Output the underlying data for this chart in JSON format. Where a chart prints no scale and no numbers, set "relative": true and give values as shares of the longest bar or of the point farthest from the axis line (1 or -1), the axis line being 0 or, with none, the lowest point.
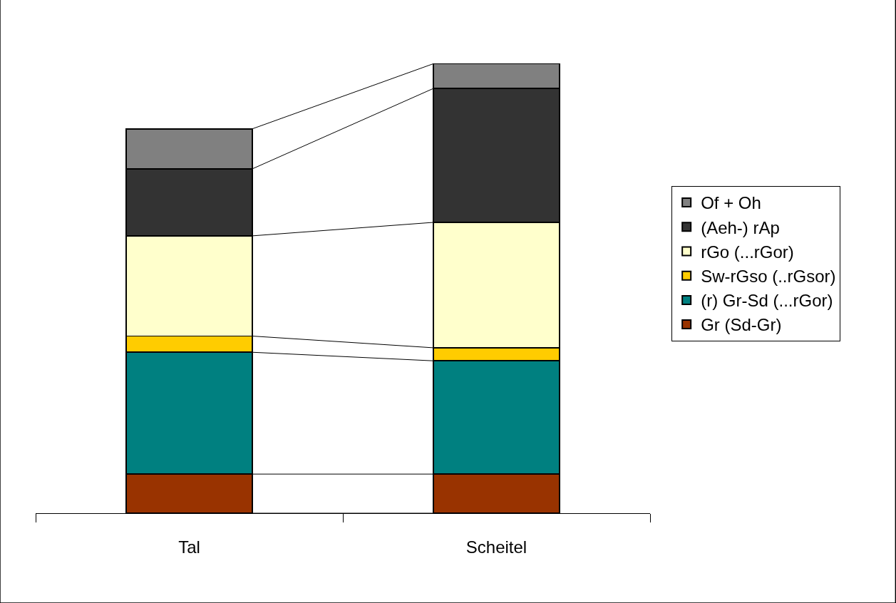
{
  "chart_data": {
    "type": "bar",
    "stacked": true,
    "relative": true,
    "legend": "right",
    "categories": [
      "Tal",
      "Scheitel"
    ],
    "series": [
      {
        "name": "Gr (Sd-Gr)",
        "color": "#993300",
        "values": [
          0.087,
          0.087
        ]
      },
      {
        "name": "(r) Gr-Sd (...rGor)",
        "color": "#008080",
        "values": [
          0.271,
          0.252
        ]
      },
      {
        "name": "Sw-rGso (..rGsor)",
        "color": "#ffcc00",
        "values": [
          0.036,
          0.029
        ]
      },
      {
        "name": "rGo (...rGor)",
        "color": "#ffffcc",
        "values": [
          0.223,
          0.279
        ]
      },
      {
        "name": "(Aeh-) rAp",
        "color": "#333333",
        "values": [
          0.149,
          0.298
        ]
      },
      {
        "name": "Of + Oh",
        "color": "#808080",
        "values": [
          0.089,
          0.055
        ]
      }
    ]
  }
}
